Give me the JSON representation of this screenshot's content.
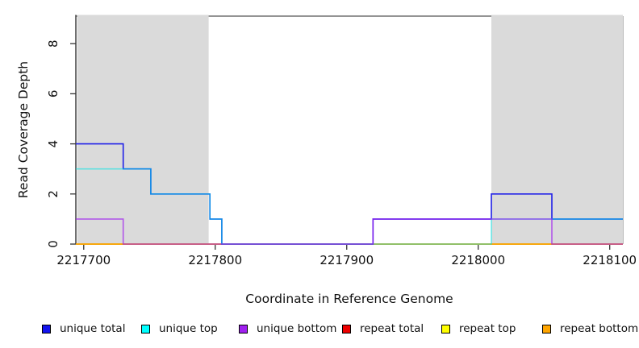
{
  "chart_data": {
    "type": "line",
    "subtype": "step-coverage-plot",
    "xlabel": "Coordinate in Reference Genome",
    "ylabel": "Read Coverage Depth",
    "xlim": [
      2217694,
      2218110
    ],
    "ylim": [
      0,
      9.1
    ],
    "x_ticks": [
      "2217700",
      "2217800",
      "2217900",
      "2218000",
      "2218100"
    ],
    "x_tick_values": [
      2217700,
      2217800,
      2217900,
      2218000,
      2218100
    ],
    "y_ticks": [
      "0",
      "2",
      "4",
      "6",
      "8"
    ],
    "y_tick_values": [
      0,
      2,
      4,
      6,
      8
    ],
    "grid": "off",
    "background_color": "#ffffff",
    "shade_color": "#DADADA",
    "shaded_regions": [
      {
        "from": 2217695,
        "to": 2217795
      },
      {
        "from": 2218010,
        "to": 2218110
      }
    ],
    "series": [
      {
        "name": "unique total",
        "color": "#2020E8",
        "opacity": 1.0,
        "steps": [
          [
            2217694,
            4
          ],
          [
            2217730,
            3
          ],
          [
            2217751,
            2
          ],
          [
            2217796,
            1
          ],
          [
            2217805,
            0
          ],
          [
            2217920,
            1
          ],
          [
            2218010,
            2
          ],
          [
            2218056,
            1
          ],
          [
            2218110,
            1
          ]
        ]
      },
      {
        "name": "unique top",
        "color": "#00E6E6",
        "opacity": 0.55,
        "steps": [
          [
            2217694,
            3
          ],
          [
            2217751,
            2
          ],
          [
            2217796,
            1
          ],
          [
            2217805,
            0
          ],
          [
            2218010,
            1
          ],
          [
            2218110,
            1
          ]
        ]
      },
      {
        "name": "unique bottom",
        "color": "#A020F0",
        "opacity": 0.7,
        "steps": [
          [
            2217694,
            1
          ],
          [
            2217730,
            0
          ],
          [
            2217920,
            1
          ],
          [
            2218056,
            0
          ],
          [
            2218110,
            0
          ]
        ]
      },
      {
        "name": "repeat total",
        "color": "#DD0000",
        "opacity": 1.0,
        "steps": [
          [
            2217694,
            0
          ],
          [
            2218110,
            0
          ]
        ]
      },
      {
        "name": "repeat top",
        "color": "#FFFF00",
        "opacity": 0.85,
        "steps": [
          [
            2217694,
            0
          ],
          [
            2218110,
            0
          ]
        ]
      },
      {
        "name": "repeat bottom",
        "color": "#FFA500",
        "opacity": 0.9,
        "steps": [
          [
            2217694,
            0
          ],
          [
            2218110,
            0
          ]
        ]
      }
    ],
    "draw_order": [
      3,
      4,
      5,
      0,
      1,
      2
    ],
    "legend_position": "bottom",
    "legend": [
      {
        "label": "unique total",
        "color": "#1414F0"
      },
      {
        "label": "unique top",
        "color": "#00FFFF"
      },
      {
        "label": "unique bottom",
        "color": "#A020F0"
      },
      {
        "label": "repeat total",
        "color": "#EE0000"
      },
      {
        "label": "repeat top",
        "color": "#FFFF00"
      },
      {
        "label": "repeat bottom",
        "color": "#FFA500"
      }
    ]
  }
}
